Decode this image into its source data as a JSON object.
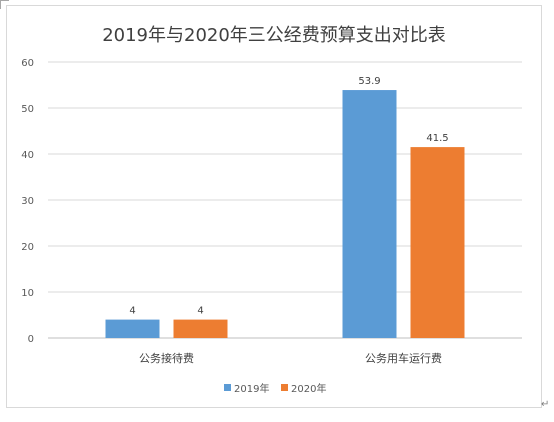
{
  "chart_data": {
    "type": "bar",
    "title": "2019年与2020年三公经费预算支出对比表",
    "categories": [
      "公务接待费",
      "公务用车运行费"
    ],
    "series": [
      {
        "name": "2019年",
        "values": [
          4,
          53.9
        ],
        "color": "#5b9bd5"
      },
      {
        "name": "2020年",
        "values": [
          4,
          41.5
        ],
        "color": "#ed7d31"
      }
    ],
    "ylim": [
      0,
      60
    ],
    "yticks": [
      0,
      10,
      20,
      30,
      40,
      50,
      60
    ],
    "grid": true,
    "legend": "bottom"
  },
  "page_marks": {
    "return_glyph": "↵"
  }
}
